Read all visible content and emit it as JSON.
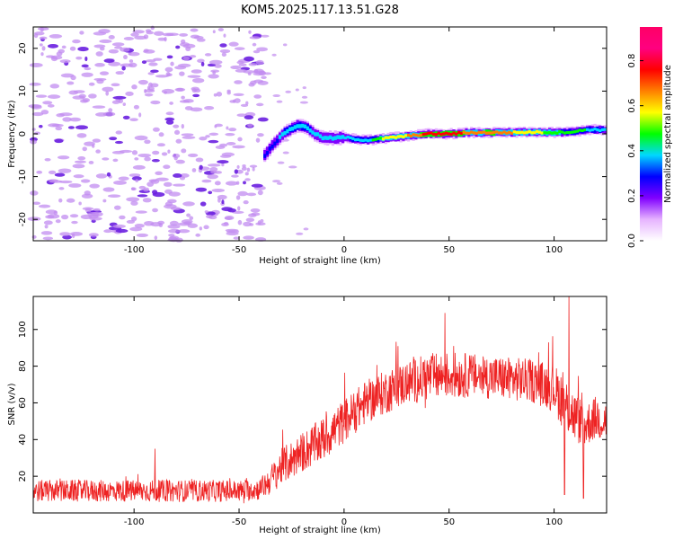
{
  "title": "KOM5.2025.117.13.51.G28",
  "colors": {
    "noise": "#c28cf0",
    "noise_dark": "#6a1fe0",
    "snr_line": "#ee2222",
    "ridge_low": "#6a1fe0",
    "ridge_high": "#ff0000"
  },
  "chart_data": [
    {
      "type": "heatmap",
      "name": "spectrogram",
      "xlabel": "Height of straight line (km)",
      "ylabel": "Frequency (Hz)",
      "xlim": [
        -148,
        125
      ],
      "ylim": [
        -25,
        25
      ],
      "xticks": [
        -100,
        -50,
        0,
        50,
        100
      ],
      "yticks": [
        -20,
        -10,
        0,
        10,
        20
      ],
      "grid": false,
      "colorbar": {
        "label": "Normalized spectral amplitude",
        "range": [
          0,
          0.95
        ],
        "ticks": [
          0.0,
          0.2,
          0.4,
          0.6,
          0.8
        ],
        "tick_labels": [
          "0.0",
          "0.2",
          "0.4",
          "0.6",
          "0.8"
        ],
        "colors": [
          "#ffffff",
          "#e6b3ff",
          "#8000ff",
          "#0000ff",
          "#00d8ff",
          "#00ff00",
          "#ffff00",
          "#ff8000",
          "#ff0000",
          "#ff0080",
          "#ff0066"
        ]
      },
      "noise_region_x": [
        -148,
        -38
      ],
      "ridge": {
        "x": [
          -38,
          -33,
          -28,
          -22,
          -18,
          -14,
          -10,
          -5,
          0,
          5,
          10,
          15,
          20,
          30,
          40,
          50,
          60,
          70,
          80,
          90,
          100,
          110,
          115,
          120,
          125
        ],
        "freq": [
          -5,
          -2,
          0.5,
          2,
          1.5,
          0,
          -1,
          -1,
          -0.8,
          -1.2,
          -1.5,
          -1.3,
          -1,
          -0.5,
          0,
          0,
          0.3,
          0.3,
          0.3,
          0.4,
          0.3,
          0.5,
          1,
          1,
          0.8
        ],
        "amplitude": [
          0.3,
          0.3,
          0.45,
          0.5,
          0.45,
          0.4,
          0.35,
          0.35,
          0.4,
          0.45,
          0.45,
          0.55,
          0.7,
          0.75,
          0.9,
          0.95,
          0.8,
          0.85,
          0.75,
          0.7,
          0.6,
          0.55,
          0.5,
          0.45,
          0.4
        ]
      }
    },
    {
      "type": "line",
      "name": "snr",
      "xlabel": "Height of straight line (km)",
      "ylabel": "SNR (v/v)",
      "xlim": [
        -148,
        125
      ],
      "ylim": [
        0,
        118
      ],
      "xticks": [
        -100,
        -50,
        0,
        50,
        100
      ],
      "yticks": [
        20,
        40,
        60,
        80,
        100
      ],
      "grid": false,
      "envelope": {
        "x": [
          -148,
          -130,
          -110,
          -90,
          -70,
          -50,
          -40,
          -35,
          -30,
          -20,
          -10,
          0,
          10,
          20,
          30,
          40,
          50,
          60,
          70,
          80,
          90,
          100,
          105,
          110,
          115,
          120,
          125
        ],
        "mean": [
          12,
          12,
          12,
          12,
          12,
          12,
          13,
          18,
          25,
          33,
          40,
          50,
          60,
          66,
          71,
          74,
          75,
          75,
          74,
          73,
          72,
          68,
          60,
          52,
          48,
          52,
          50
        ],
        "spread": [
          6,
          6,
          6,
          6,
          6,
          6,
          6,
          8,
          10,
          11,
          12,
          12,
          12,
          12,
          12,
          13,
          13,
          12,
          12,
          12,
          12,
          13,
          16,
          14,
          12,
          12,
          12
        ]
      },
      "peaks": [
        {
          "x": -90,
          "y": 35
        },
        {
          "x": 48,
          "y": 109
        },
        {
          "x": 107,
          "y": 118
        },
        {
          "x": 105,
          "y": 10
        },
        {
          "x": 114,
          "y": 8
        }
      ]
    }
  ]
}
